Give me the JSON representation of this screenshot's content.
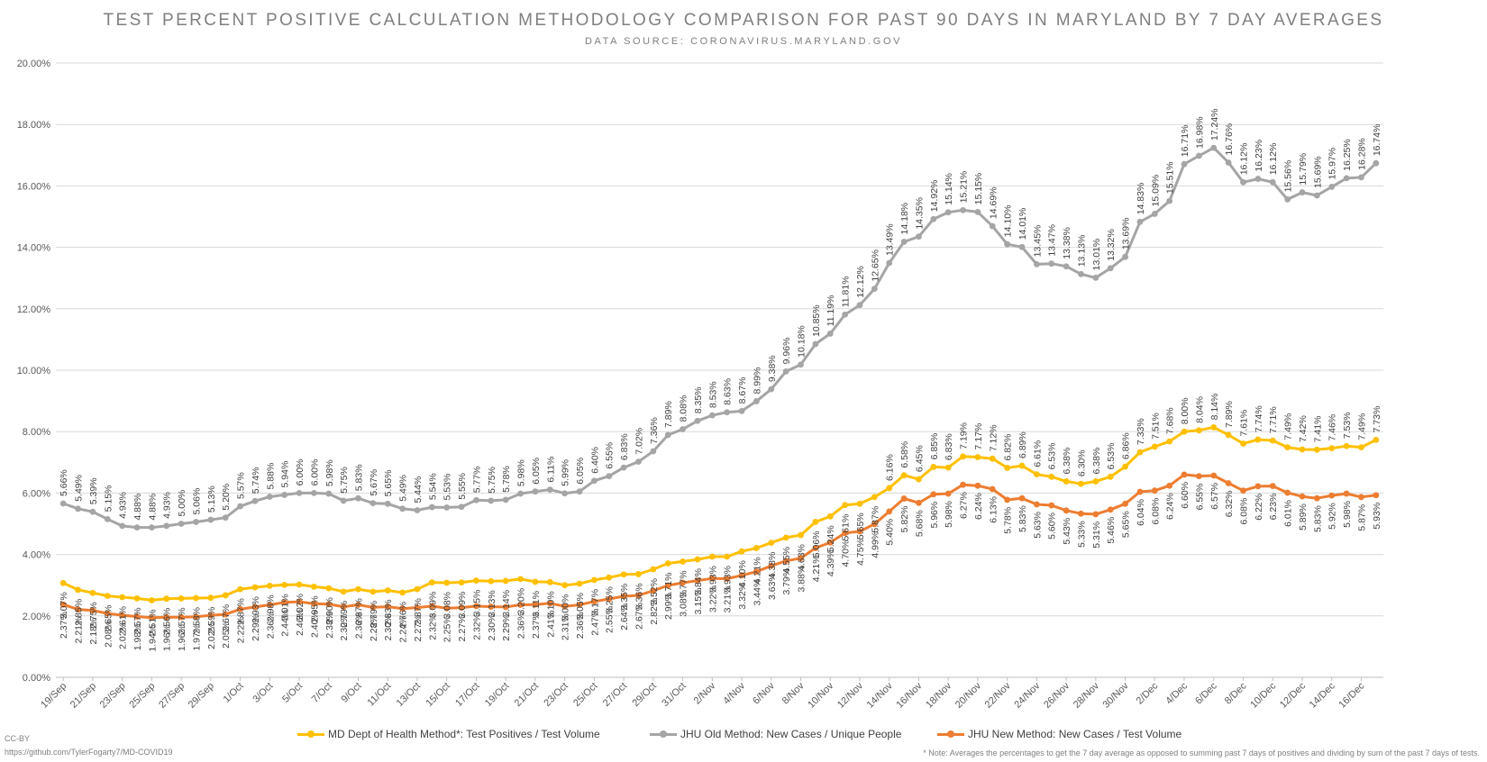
{
  "chart_data": {
    "type": "line",
    "title": "TEST PERCENT POSITIVE CALCULATION METHODOLOGY COMPARISON FOR PAST 90 DAYS IN MARYLAND BY 7 DAY AVERAGES",
    "subtitle": "DATA SOURCE: CORONAVIRUS.MARYLAND.GOV",
    "xlabel": "",
    "ylabel": "",
    "ylim": [
      0,
      20
    ],
    "y_ticks": [
      "0.00%",
      "2.00%",
      "4.00%",
      "6.00%",
      "8.00%",
      "10.00%",
      "12.00%",
      "14.00%",
      "16.00%",
      "18.00%",
      "20.00%"
    ],
    "x_start": "19/Sep",
    "x_end": "17/Dec",
    "x_tick_labels": [
      "19/Sep",
      "21/Sep",
      "23/Sep",
      "25/Sep",
      "27/Sep",
      "29/Sep",
      "1/Oct",
      "3/Oct",
      "5/Oct",
      "7/Oct",
      "9/Oct",
      "11/Oct",
      "13/Oct",
      "15/Oct",
      "17/Oct",
      "19/Oct",
      "21/Oct",
      "23/Oct",
      "25/Oct",
      "27/Oct",
      "29/Oct",
      "31/Oct",
      "2/Nov",
      "4/Nov",
      "6/Nov",
      "8/Nov",
      "10/Nov",
      "12/Nov",
      "14/Nov",
      "16/Nov",
      "18/Nov",
      "20/Nov",
      "22/Nov",
      "24/Nov",
      "26/Nov",
      "28/Nov",
      "30/Nov",
      "2/Dec",
      "4/Dec",
      "6/Dec",
      "8/Dec",
      "10/Dec",
      "12/Dec",
      "14/Dec",
      "16/Dec"
    ],
    "grid": true,
    "legend_position": "bottom",
    "series": [
      {
        "name": "MD Dept of Health Method*: Test Positives / Test Volume",
        "color": "#ffc000",
        "values": [
          3.07,
          2.85,
          2.75,
          2.65,
          2.61,
          2.57,
          2.51,
          2.56,
          2.57,
          2.58,
          2.59,
          2.67,
          2.87,
          2.93,
          2.98,
          3.01,
          3.02,
          2.95,
          2.9,
          2.79,
          2.87,
          2.79,
          2.83,
          2.76,
          2.87,
          3.09,
          3.08,
          3.09,
          3.15,
          3.13,
          3.14,
          3.2,
          3.11,
          3.1,
          3.0,
          3.05,
          3.17,
          3.25,
          3.35,
          3.36,
          3.52,
          3.71,
          3.77,
          3.84,
          3.93,
          3.93,
          4.1,
          4.21,
          4.38,
          4.55,
          4.63,
          5.06,
          5.24,
          5.61,
          5.65,
          5.87,
          6.16,
          6.58,
          6.45,
          6.85,
          6.83,
          7.19,
          7.17,
          7.12,
          6.82,
          6.89,
          6.61,
          6.53,
          6.38,
          6.3,
          6.38,
          6.53,
          6.86,
          7.33,
          7.51,
          7.68,
          8.0,
          8.04,
          8.14,
          7.89,
          7.61,
          7.74,
          7.71,
          7.49,
          7.42,
          7.41,
          7.46,
          7.53,
          7.49,
          7.73
        ]
      },
      {
        "name": "JHU Old Method: New Cases / Unique People",
        "color": "#a5a5a5",
        "values": [
          5.66,
          5.49,
          5.39,
          5.15,
          4.93,
          4.88,
          4.88,
          4.93,
          5.0,
          5.06,
          5.13,
          5.2,
          5.57,
          5.74,
          5.88,
          5.94,
          6.0,
          6.0,
          5.98,
          5.75,
          5.83,
          5.67,
          5.65,
          5.49,
          5.44,
          5.54,
          5.53,
          5.55,
          5.77,
          5.75,
          5.78,
          5.98,
          6.05,
          6.11,
          5.99,
          6.05,
          6.4,
          6.55,
          6.83,
          7.02,
          7.36,
          7.89,
          8.08,
          8.35,
          8.53,
          8.63,
          8.67,
          8.99,
          9.38,
          9.96,
          10.18,
          10.85,
          11.19,
          11.81,
          12.12,
          12.65,
          13.49,
          14.18,
          14.35,
          14.92,
          15.14,
          15.21,
          15.15,
          14.69,
          14.1,
          14.01,
          13.45,
          13.47,
          13.38,
          13.13,
          13.01,
          13.32,
          13.69,
          14.83,
          15.09,
          15.51,
          16.71,
          16.98,
          17.24,
          16.76,
          16.12,
          16.23,
          16.12,
          15.56,
          15.79,
          15.69,
          15.97,
          16.25,
          16.28,
          16.74
        ]
      },
      {
        "name": "JHU New Method: New Cases / Test Volume",
        "color": "#ed7d31",
        "values": [
          2.37,
          2.21,
          2.18,
          2.08,
          2.02,
          1.98,
          1.94,
          1.96,
          1.96,
          1.97,
          2.02,
          2.05,
          2.22,
          2.29,
          2.36,
          2.44,
          2.46,
          2.4,
          2.38,
          2.3,
          2.36,
          2.28,
          2.3,
          2.24,
          2.27,
          2.32,
          2.25,
          2.27,
          2.32,
          2.3,
          2.29,
          2.36,
          2.37,
          2.41,
          2.31,
          2.36,
          2.47,
          2.55,
          2.64,
          2.67,
          2.82,
          2.99,
          3.08,
          3.15,
          3.22,
          3.21,
          3.32,
          3.44,
          3.63,
          3.79,
          3.88,
          4.21,
          4.39,
          4.7,
          4.75,
          4.99,
          5.4,
          5.82,
          5.68,
          5.96,
          5.98,
          6.27,
          6.24,
          6.13,
          5.78,
          5.83,
          5.63,
          5.6,
          5.43,
          5.33,
          5.31,
          5.46,
          5.65,
          6.04,
          6.08,
          6.24,
          6.6,
          6.55,
          6.57,
          6.32,
          6.08,
          6.22,
          6.23,
          6.01,
          5.89,
          5.83,
          5.92,
          5.98,
          5.87,
          5.93
        ]
      }
    ]
  },
  "credits": {
    "license": "CC-BY",
    "url": "https://github.com/TylerFogarty7/MD-COVID19"
  },
  "footnote": "* Note: Averages the percentages to get the 7 day average as opposed to summing past 7 days of positives and dividing by sum of the past 7 days of tests."
}
